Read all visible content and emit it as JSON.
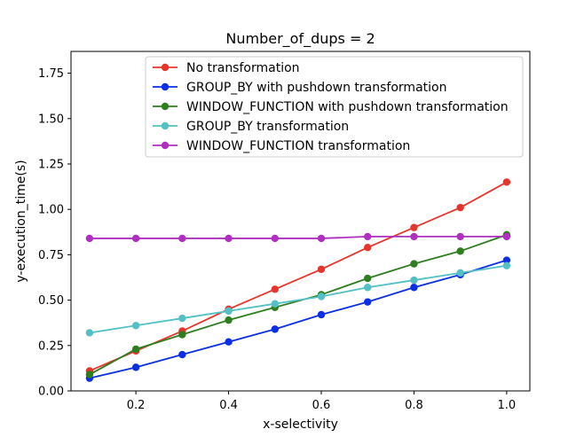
{
  "chart_data": {
    "type": "line",
    "title": "Number_of_dups = 2",
    "xlabel": "x-selectivity",
    "ylabel": "y-execution_time(s)",
    "xlim": [
      0.06,
      1.05
    ],
    "ylim": [
      0.0,
      1.87
    ],
    "xticks": [
      0.2,
      0.4,
      0.6,
      0.8,
      1.0
    ],
    "xtick_labels": [
      "0.2",
      "0.4",
      "0.6",
      "0.8",
      "1.0"
    ],
    "yticks": [
      0.0,
      0.25,
      0.5,
      0.75,
      1.0,
      1.25,
      1.5,
      1.75
    ],
    "ytick_labels": [
      "0.00",
      "0.25",
      "0.50",
      "0.75",
      "1.00",
      "1.25",
      "1.50",
      "1.75"
    ],
    "grid": false,
    "legend_position": "top-right",
    "x": [
      0.1,
      0.2,
      0.3,
      0.4,
      0.5,
      0.6,
      0.7,
      0.8,
      0.9,
      1.0
    ],
    "series": [
      {
        "name": "No transformation",
        "color": "#e8352b",
        "values": [
          0.11,
          0.22,
          0.33,
          0.45,
          0.56,
          0.67,
          0.79,
          0.9,
          1.01,
          1.15
        ]
      },
      {
        "name": "GROUP_BY with pushdown transformation",
        "color": "#0a2fe6",
        "values": [
          0.07,
          0.13,
          0.2,
          0.27,
          0.34,
          0.42,
          0.49,
          0.57,
          0.64,
          0.72
        ]
      },
      {
        "name": "WINDOW_FUNCTION with pushdown transformation",
        "color": "#2e7d1e",
        "values": [
          0.09,
          0.23,
          0.31,
          0.39,
          0.46,
          0.53,
          0.62,
          0.7,
          0.77,
          0.86
        ]
      },
      {
        "name": "GROUP_BY transformation",
        "color": "#52c0c4",
        "values": [
          0.32,
          0.36,
          0.4,
          0.44,
          0.48,
          0.52,
          0.57,
          0.61,
          0.65,
          0.69
        ]
      },
      {
        "name": "WINDOW_FUNCTION transformation",
        "color": "#b02fc0",
        "values": [
          0.84,
          0.84,
          0.84,
          0.84,
          0.84,
          0.84,
          0.85,
          0.85,
          0.85,
          0.85
        ]
      }
    ]
  }
}
